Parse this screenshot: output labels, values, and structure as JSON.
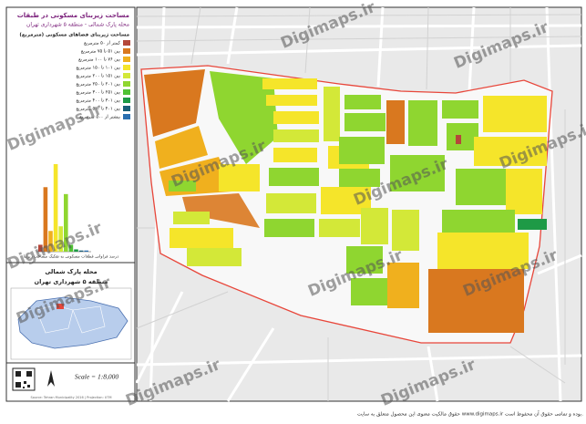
{
  "panel": {
    "title": "مساحت زیربنای مسکونی در طبقات",
    "subtitle": "محله پارک شمالی - منطقه ۵ شهرداری تهران",
    "legend_title": "مساحت زیربنای فضاهای مسکونی (مترمربع)",
    "legend": [
      {
        "label": "کمتر از ۵۰ مترمربع",
        "color": "#b5473a"
      },
      {
        "label": "بین ۵۱ تا ۷۵ مترمربع",
        "color": "#d9781f"
      },
      {
        "label": "بین ۷۶ تا ۱۰۰ مترمربع",
        "color": "#f0b01e"
      },
      {
        "label": "بین ۱۰۱ تا ۱۵۰ مترمربع",
        "color": "#f5e52a"
      },
      {
        "label": "بین ۱۵۱ تا ۲۰۰ مترمربع",
        "color": "#d3e838"
      },
      {
        "label": "بین ۲۰۱ تا ۲۵۰ مترمربع",
        "color": "#8fd630"
      },
      {
        "label": "بین ۲۵۱ تا ۳۰۰ مترمربع",
        "color": "#4fc234"
      },
      {
        "label": "بین ۳۰۱ تا ۴۰۰ مترمربع",
        "color": "#1e9a46"
      },
      {
        "label": "بین ۴۰۱ تا ۵۰۰ مترمربع",
        "color": "#1a5f78"
      },
      {
        "label": "بیشتر از ۵۰۰ مترمربع",
        "color": "#2a6fb0"
      }
    ],
    "histogram": {
      "values": [
        3,
        28,
        9,
        38,
        11,
        25,
        3,
        1,
        0.5,
        0.5
      ]
    },
    "histogram_caption": "درصد فراوانی قطعات مسکونی به تفکیک مساحت زیربنا",
    "neighborhood": "محله پارک شمالی",
    "district": "منطقه ۵ شهرداری تهران",
    "scale": "Scale = 1:8,000",
    "credit": "Source: Tehran Municipality 2016 | Projection: UTM"
  },
  "watermark": "Digimaps.ir",
  "footer": "حقوق مالکیت معنوی این محصول متعلق به سایت www.digimaps.ir بوده و تمامی حقوق آن محفوظ است."
}
